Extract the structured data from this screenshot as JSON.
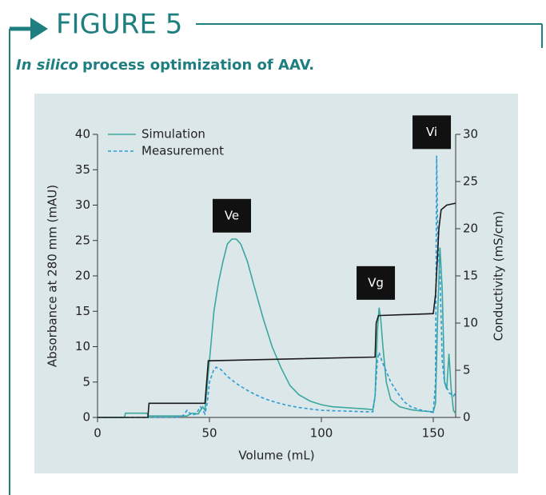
{
  "header": {
    "title": "FIGURE 5",
    "subtitle_italic": "In silico",
    "subtitle": "process optimization of AAV."
  },
  "chart_data": {
    "type": "line",
    "xlabel": "Volume (mL)",
    "ylabel": "Absorbance at 280 mm (mAU)",
    "y2label": "Conductivity (mS/cm)",
    "xlim": [
      0,
      160
    ],
    "xticks": [
      0,
      50,
      100,
      150
    ],
    "ylim": [
      0,
      40
    ],
    "yticks": [
      0,
      5,
      10,
      15,
      20,
      25,
      30,
      35,
      40
    ],
    "y2lim": [
      0,
      30
    ],
    "y2ticks": [
      0,
      5,
      10,
      15,
      20,
      25,
      30
    ],
    "legend": "upper left",
    "series": [
      {
        "name": "Simulation",
        "color": "#3aa89e",
        "style": "solid",
        "x": [
          0,
          12,
          12.5,
          22,
          23,
          40,
          42,
          45,
          47,
          48,
          50,
          52,
          54,
          56,
          58,
          60,
          62,
          64,
          67,
          70,
          74,
          78,
          82,
          86,
          90,
          95,
          100,
          105,
          110,
          115,
          120,
          123,
          124,
          125,
          125.8,
          126.5,
          127.5,
          129,
          131,
          135,
          140,
          145,
          150,
          151,
          152,
          153,
          154,
          155,
          156,
          157,
          158,
          159,
          160
        ],
        "values": [
          0,
          0,
          0.6,
          0.6,
          0.2,
          0.2,
          0.6,
          0.5,
          1.5,
          1,
          8,
          15,
          19,
          22,
          24.5,
          25.2,
          25.2,
          24.5,
          22,
          18.5,
          14,
          10,
          7,
          4.5,
          3.2,
          2.3,
          1.8,
          1.5,
          1.4,
          1.3,
          1.2,
          1.1,
          3,
          12,
          15.5,
          14,
          10,
          5,
          2.5,
          1.5,
          1.1,
          0.9,
          0.8,
          2,
          15,
          24,
          18,
          5,
          4,
          9,
          4,
          1,
          0.5
        ]
      },
      {
        "name": "Measurement",
        "color": "#2b9bd6",
        "style": "dashed",
        "x": [
          0,
          35,
          38,
          40,
          42,
          44,
          46,
          48,
          49,
          50,
          52,
          53,
          55,
          58,
          62,
          66,
          70,
          75,
          80,
          85,
          90,
          95,
          100,
          110,
          120,
          123,
          124,
          125,
          125.8,
          127,
          129,
          131,
          134,
          137,
          140,
          145,
          150,
          151,
          151.5,
          152,
          153,
          154,
          155,
          157,
          159,
          160
        ],
        "values": [
          0,
          0,
          0.2,
          1,
          0.3,
          0.5,
          1.5,
          0.5,
          2,
          5,
          6.8,
          7.1,
          6.8,
          5.8,
          4.8,
          4,
          3.3,
          2.6,
          2.1,
          1.7,
          1.4,
          1.2,
          1.0,
          0.9,
          0.8,
          0.8,
          3,
          8,
          9.2,
          8,
          6.5,
          5,
          3.5,
          2.2,
          1.5,
          1.0,
          0.7,
          5,
          37,
          25,
          20,
          8,
          5,
          3.5,
          3,
          3.5
        ]
      },
      {
        "color": "#1a1a1a",
        "style": "solid",
        "axis": "y2",
        "x": [
          0,
          22.5,
          23,
          48,
          49.5,
          124,
          124.5,
          125.5,
          150,
          151,
          152.5,
          153.5,
          156,
          160
        ],
        "values": [
          0,
          0,
          1.5,
          1.5,
          6.0,
          6.4,
          10,
          10.8,
          11,
          13,
          20,
          22,
          22.5,
          22.7
        ]
      }
    ],
    "annotations": [
      {
        "text": "Ve",
        "x": 60,
        "y": 28.5
      },
      {
        "text": "Vg",
        "x": 124.3,
        "y": 19
      },
      {
        "text": "Vi",
        "x": 149.3,
        "y": 40.3
      }
    ]
  }
}
